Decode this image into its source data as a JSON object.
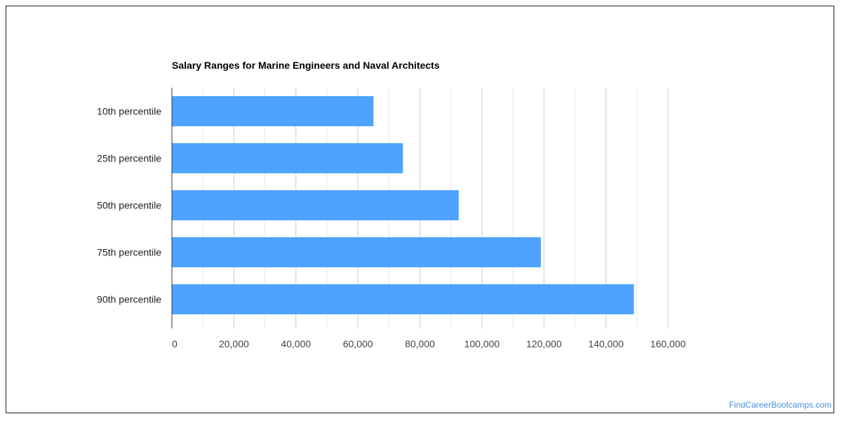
{
  "chart_data": {
    "type": "bar",
    "orientation": "horizontal",
    "title": "Salary Ranges for Marine Engineers and Naval Architects",
    "categories": [
      "10th percentile",
      "25th percentile",
      "50th percentile",
      "75th percentile",
      "90th percentile"
    ],
    "values": [
      65000,
      74500,
      92500,
      119000,
      149000
    ],
    "xlim": [
      0,
      160000
    ],
    "xticks": [
      0,
      20000,
      40000,
      60000,
      80000,
      100000,
      120000,
      140000,
      160000
    ],
    "xtick_labels": [
      "0",
      "20,000",
      "40,000",
      "60,000",
      "80,000",
      "100,000",
      "120,000",
      "140,000",
      "160,000"
    ],
    "xlabel": "",
    "ylabel": "",
    "grid": true,
    "legend": "none",
    "bar_color": "#4da3ff"
  },
  "watermark": "FindCareerBootcamps.com"
}
